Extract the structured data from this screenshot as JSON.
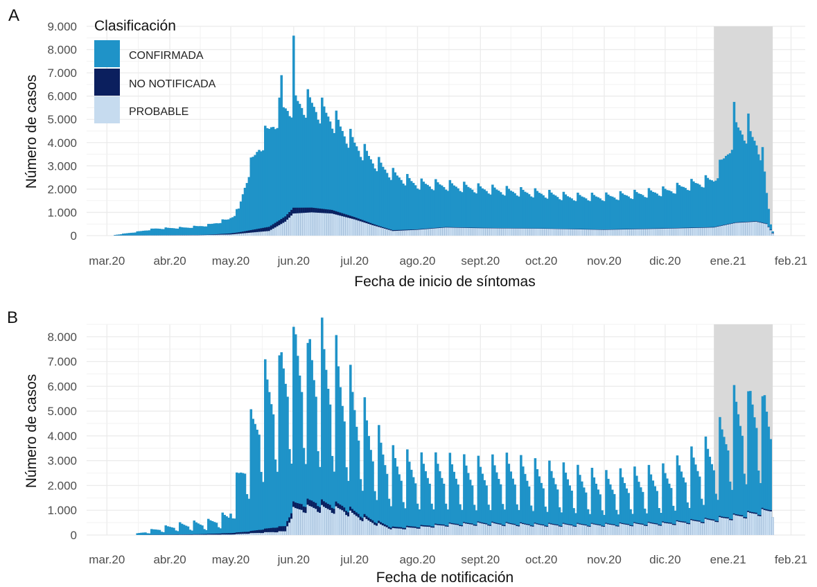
{
  "legend": {
    "title": "Clasificación",
    "items": [
      {
        "label": "CONFIRMADA",
        "color": "#1F93C8"
      },
      {
        "label": "NO NOTIFICADA",
        "color": "#0B1F5E"
      },
      {
        "label": "PROBABLE",
        "color": "#C6DBEF"
      }
    ]
  },
  "colors": {
    "confirmada": "#1F93C8",
    "no_notificada": "#0B1F5E",
    "probable": "#C6DBEF",
    "grid": "#EBEBEB",
    "shade": "#BEBEBE"
  },
  "chart_data": [
    {
      "panel_label": "A",
      "type": "bar",
      "stacked": true,
      "xlabel": "Fecha de inicio de síntomas",
      "ylabel": "Número de casos",
      "x_tick_labels": [
        "mar.20",
        "abr.20",
        "may.20",
        "jun.20",
        "jul.20",
        "ago.20",
        "sept.20",
        "oct.20",
        "nov.20",
        "dic.20",
        "ene.21",
        "feb.21"
      ],
      "y_tick_labels": [
        "0",
        "1.000",
        "2.000",
        "3.000",
        "4.000",
        "5.000",
        "6.000",
        "7.000",
        "8.000",
        "9.000"
      ],
      "xlim": [
        "2020-02-20",
        "2021-02-08"
      ],
      "ylim": [
        0,
        9000
      ],
      "shaded_region": [
        "2020-12-25",
        "2021-01-23"
      ],
      "legend_position": "top-left",
      "grid": true,
      "series_order": [
        "PROBABLE",
        "NO NOTIFICADA",
        "CONFIRMADA"
      ],
      "anchors_total": [
        [
          "2020-03-05",
          30
        ],
        [
          "2020-03-15",
          150
        ],
        [
          "2020-03-25",
          300
        ],
        [
          "2020-04-10",
          350
        ],
        [
          "2020-04-20",
          450
        ],
        [
          "2020-04-30",
          700
        ],
        [
          "2020-05-05",
          1100
        ],
        [
          "2020-05-10",
          2800
        ],
        [
          "2020-05-15",
          3800
        ],
        [
          "2020-05-20",
          4500
        ],
        [
          "2020-05-25",
          5300
        ],
        [
          "2020-06-01",
          5700
        ],
        [
          "2020-06-10",
          5600
        ],
        [
          "2020-06-20",
          5000
        ],
        [
          "2020-06-30",
          4000
        ],
        [
          "2020-07-10",
          3200
        ],
        [
          "2020-07-20",
          2600
        ],
        [
          "2020-08-01",
          2200
        ],
        [
          "2020-08-15",
          2150
        ],
        [
          "2020-09-01",
          2000
        ],
        [
          "2020-09-15",
          1900
        ],
        [
          "2020-10-01",
          1800
        ],
        [
          "2020-10-15",
          1650
        ],
        [
          "2020-11-01",
          1650
        ],
        [
          "2020-11-15",
          1750
        ],
        [
          "2020-12-01",
          1900
        ],
        [
          "2020-12-15",
          2200
        ],
        [
          "2020-12-25",
          2400
        ],
        [
          "2021-01-01",
          3600
        ],
        [
          "2021-01-05",
          4600
        ],
        [
          "2021-01-10",
          4400
        ],
        [
          "2021-01-15",
          4000
        ],
        [
          "2021-01-18",
          3400
        ],
        [
          "2021-01-20",
          1800
        ],
        [
          "2021-01-22",
          500
        ],
        [
          "2021-01-23",
          200
        ]
      ],
      "anchors_probable": [
        [
          "2020-03-05",
          5
        ],
        [
          "2020-04-15",
          20
        ],
        [
          "2020-05-01",
          50
        ],
        [
          "2020-05-20",
          200
        ],
        [
          "2020-05-28",
          600
        ],
        [
          "2020-06-01",
          950
        ],
        [
          "2020-06-10",
          1000
        ],
        [
          "2020-06-20",
          950
        ],
        [
          "2020-07-01",
          700
        ],
        [
          "2020-07-10",
          450
        ],
        [
          "2020-07-20",
          200
        ],
        [
          "2020-08-01",
          250
        ],
        [
          "2020-08-15",
          350
        ],
        [
          "2020-09-01",
          320
        ],
        [
          "2020-10-01",
          300
        ],
        [
          "2020-11-01",
          250
        ],
        [
          "2020-12-01",
          300
        ],
        [
          "2020-12-25",
          350
        ],
        [
          "2021-01-05",
          550
        ],
        [
          "2021-01-15",
          600
        ],
        [
          "2021-01-20",
          500
        ],
        [
          "2021-01-23",
          100
        ]
      ],
      "anchors_no_notificada": [
        [
          "2020-03-05",
          0
        ],
        [
          "2020-04-20",
          10
        ],
        [
          "2020-05-05",
          60
        ],
        [
          "2020-05-20",
          180
        ],
        [
          "2020-06-01",
          250
        ],
        [
          "2020-06-15",
          180
        ],
        [
          "2020-07-01",
          100
        ],
        [
          "2020-07-15",
          40
        ],
        [
          "2020-08-01",
          20
        ],
        [
          "2020-10-01",
          10
        ],
        [
          "2021-01-23",
          20
        ]
      ],
      "weekly_amplitude": 0.1,
      "peaks": [
        [
          "2020-06-01",
          8600
        ],
        [
          "2020-05-26",
          6900
        ],
        [
          "2021-01-04",
          5750
        ],
        [
          "2021-01-11",
          5250
        ]
      ]
    },
    {
      "panel_label": "B",
      "type": "bar",
      "stacked": true,
      "xlabel": "Fecha de notificación",
      "ylabel": "Número de casos",
      "x_tick_labels": [
        "mar.20",
        "abr.20",
        "may.20",
        "jun.20",
        "jul.20",
        "ago.20",
        "sept.20",
        "oct.20",
        "nov.20",
        "dic.20",
        "ene.21",
        "feb.21"
      ],
      "y_tick_labels": [
        "0",
        "1.000",
        "2.000",
        "3.000",
        "4.000",
        "5.000",
        "6.000",
        "7.000",
        "8.000"
      ],
      "xlim": [
        "2020-02-20",
        "2021-02-08"
      ],
      "ylim": [
        0,
        8500
      ],
      "shaded_region": [
        "2020-12-25",
        "2021-01-23"
      ],
      "legend_position": "none",
      "grid": true,
      "series_order": [
        "PROBABLE",
        "NO NOTIFICADA",
        "CONFIRMADA"
      ],
      "anchors_total": [
        [
          "2020-03-16",
          50
        ],
        [
          "2020-03-25",
          200
        ],
        [
          "2020-04-05",
          350
        ],
        [
          "2020-04-20",
          450
        ],
        [
          "2020-04-30",
          700
        ],
        [
          "2020-05-05",
          2000
        ],
        [
          "2020-05-15",
          4500
        ],
        [
          "2020-05-25",
          5800
        ],
        [
          "2020-06-01",
          6500
        ],
        [
          "2020-06-10",
          6300
        ],
        [
          "2020-06-20",
          5800
        ],
        [
          "2020-07-01",
          4500
        ],
        [
          "2020-07-10",
          3300
        ],
        [
          "2020-07-20",
          2500
        ],
        [
          "2020-08-01",
          2300
        ],
        [
          "2020-08-15",
          2300
        ],
        [
          "2020-09-01",
          2200
        ],
        [
          "2020-09-15",
          2300
        ],
        [
          "2020-10-01",
          2100
        ],
        [
          "2020-10-15",
          2000
        ],
        [
          "2020-11-01",
          1800
        ],
        [
          "2020-11-15",
          1900
        ],
        [
          "2020-12-01",
          2000
        ],
        [
          "2020-12-15",
          2500
        ],
        [
          "2020-12-25",
          2900
        ],
        [
          "2021-01-05",
          4300
        ],
        [
          "2021-01-15",
          4800
        ],
        [
          "2021-01-22",
          4300
        ],
        [
          "2021-01-23",
          1300
        ]
      ],
      "anchors_probable": [
        [
          "2020-03-16",
          0
        ],
        [
          "2020-05-01",
          20
        ],
        [
          "2020-05-28",
          150
        ],
        [
          "2020-06-01",
          1000
        ],
        [
          "2020-06-10",
          1100
        ],
        [
          "2020-06-25",
          1000
        ],
        [
          "2020-07-10",
          500
        ],
        [
          "2020-07-20",
          250
        ],
        [
          "2020-08-01",
          300
        ],
        [
          "2020-08-15",
          400
        ],
        [
          "2020-09-01",
          450
        ],
        [
          "2020-10-01",
          400
        ],
        [
          "2020-11-01",
          400
        ],
        [
          "2020-12-01",
          450
        ],
        [
          "2020-12-25",
          600
        ],
        [
          "2021-01-10",
          800
        ],
        [
          "2021-01-23",
          1000
        ]
      ],
      "anchors_no_notificada": [
        [
          "2020-03-16",
          0
        ],
        [
          "2020-04-15",
          20
        ],
        [
          "2020-05-10",
          80
        ],
        [
          "2020-05-25",
          200
        ],
        [
          "2020-06-10",
          250
        ],
        [
          "2020-07-01",
          150
        ],
        [
          "2020-07-20",
          60
        ],
        [
          "2020-08-15",
          40
        ],
        [
          "2020-11-01",
          30
        ],
        [
          "2021-01-23",
          50
        ]
      ],
      "weekly_amplitude": 0.45,
      "peaks": [
        [
          "2020-06-01",
          8400
        ],
        [
          "2020-06-08",
          7750
        ],
        [
          "2020-05-25",
          7250
        ],
        [
          "2021-01-11",
          5800
        ],
        [
          "2021-01-18",
          5600
        ]
      ]
    }
  ]
}
